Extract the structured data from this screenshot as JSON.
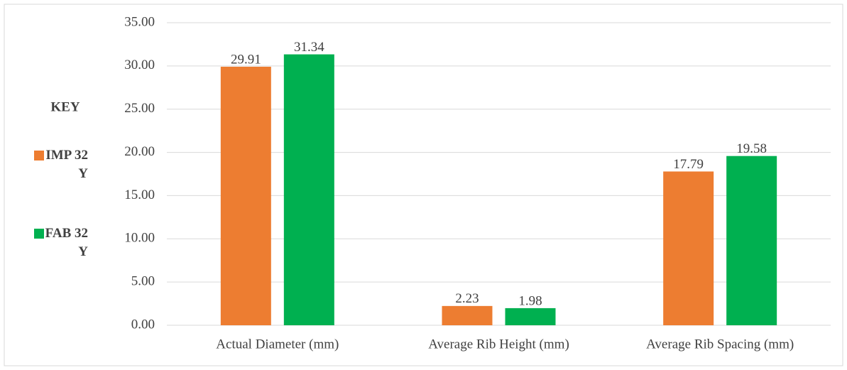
{
  "chart_data": {
    "type": "bar",
    "categories": [
      "Actual  Diameter (mm)",
      "Average Rib Height (mm)",
      "Average Rib Spacing (mm)"
    ],
    "series": [
      {
        "name": "IMP 32 Y",
        "color": "#ed7d31",
        "values": [
          29.91,
          2.23,
          17.79
        ]
      },
      {
        "name": "FAB 32 Y",
        "color": "#00b050",
        "values": [
          31.34,
          1.98,
          19.58
        ]
      }
    ],
    "legend_title": "KEY",
    "legend_position": "left",
    "ylim": [
      0,
      35
    ],
    "yticks": [
      {
        "value": 0,
        "label": "0.00"
      },
      {
        "value": 5,
        "label": "5.00"
      },
      {
        "value": 10,
        "label": "10.00"
      },
      {
        "value": 15,
        "label": "15.00"
      },
      {
        "value": 20,
        "label": "20.00"
      },
      {
        "value": 25,
        "label": "25.00"
      },
      {
        "value": 30,
        "label": "30.00"
      },
      {
        "value": 35,
        "label": "35.00"
      }
    ],
    "grid": true
  }
}
